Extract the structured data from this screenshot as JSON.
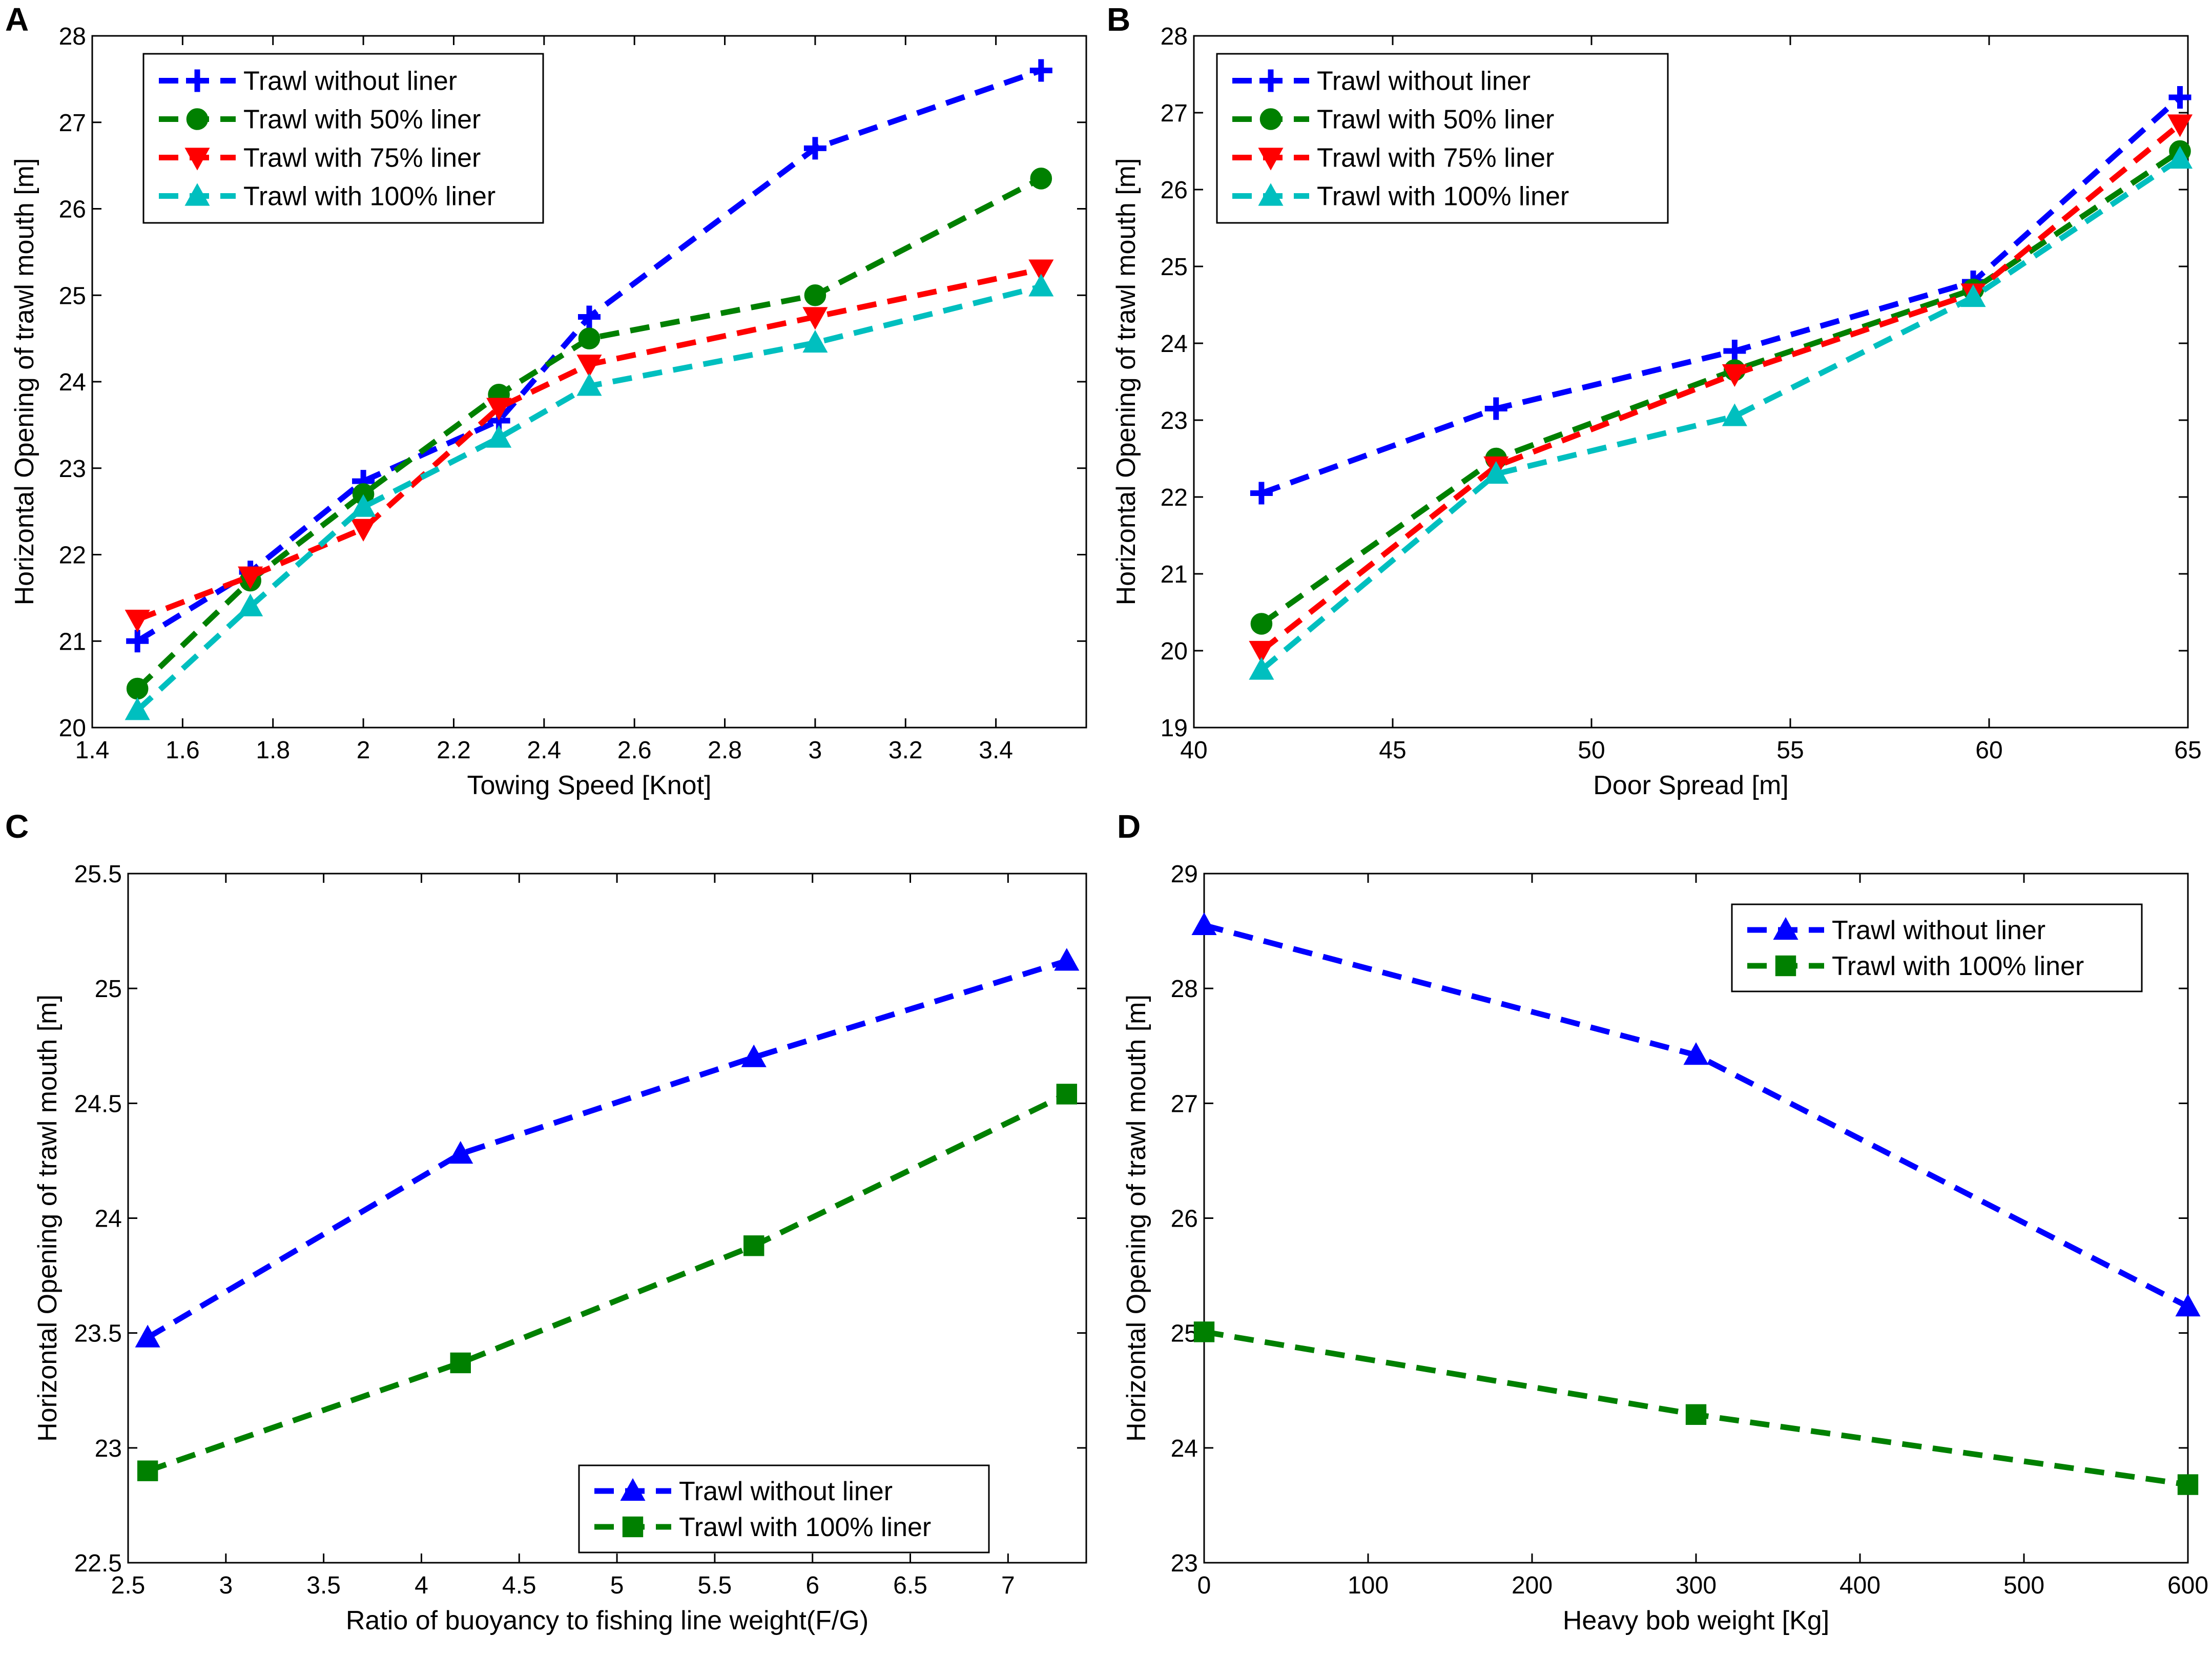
{
  "figure": {
    "panels": [
      "A",
      "B",
      "C",
      "D"
    ]
  },
  "series_styles": {
    "without": {
      "color": "#0000ff",
      "marker": "plus"
    },
    "with50": {
      "color": "#008000",
      "marker": "circle"
    },
    "with75": {
      "color": "#ff0000",
      "marker": "triangle-down"
    },
    "with100": {
      "color": "#00bfbf",
      "marker": "triangle-up"
    },
    "C_without": {
      "color": "#0000ff",
      "marker": "triangle-up"
    },
    "C_with100": {
      "color": "#008000",
      "marker": "square"
    },
    "D_without": {
      "color": "#0000ff",
      "marker": "triangle-up"
    },
    "D_with100": {
      "color": "#008000",
      "marker": "square"
    }
  },
  "chart_data": [
    {
      "panel": "A",
      "type": "line",
      "title": "",
      "xlabel": "Towing Speed [Knot]",
      "ylabel": "Horizontal Opening of trawl mouth [m]",
      "xlim": [
        1.4,
        3.6
      ],
      "ylim": [
        20,
        28
      ],
      "xticks": [
        1.4,
        1.6,
        1.8,
        2,
        2.2,
        2.4,
        2.6,
        2.8,
        3,
        3.2,
        3.4
      ],
      "yticks": [
        20,
        21,
        22,
        23,
        24,
        25,
        26,
        27,
        28
      ],
      "xtick_labels": [
        "1.4",
        "1.6",
        "1.8",
        "2",
        "2.2",
        "2.4",
        "2.6",
        "2.8",
        "3",
        "3.2",
        "3.4"
      ],
      "ytick_labels": [
        "20",
        "21",
        "22",
        "23",
        "24",
        "25",
        "26",
        "27",
        "28"
      ],
      "legend_position": "top-left",
      "x": [
        1.5,
        1.75,
        2,
        2.3,
        2.5,
        3,
        3.5
      ],
      "series": [
        {
          "name": "Trawl without liner",
          "style": "without",
          "values": [
            21.0,
            21.8,
            22.85,
            23.55,
            24.75,
            26.7,
            27.6
          ]
        },
        {
          "name": "Trawl with 50% liner",
          "style": "with50",
          "values": [
            20.45,
            21.7,
            22.7,
            23.85,
            24.5,
            25.0,
            26.35
          ]
        },
        {
          "name": "Trawl with 75% liner",
          "style": "with75",
          "values": [
            21.25,
            21.75,
            22.3,
            23.7,
            24.2,
            24.75,
            25.3
          ]
        },
        {
          "name": "Trawl with 100% liner",
          "style": "with100",
          "values": [
            20.2,
            21.4,
            22.55,
            23.35,
            23.95,
            24.45,
            25.1
          ]
        }
      ]
    },
    {
      "panel": "B",
      "type": "line",
      "title": "",
      "xlabel": "Door Spread [m]",
      "ylabel": "Horizontal Opening of trawl mouth [m]",
      "xlim": [
        40,
        65
      ],
      "ylim": [
        19,
        28
      ],
      "xticks": [
        40,
        45,
        50,
        55,
        60,
        65
      ],
      "yticks": [
        19,
        20,
        21,
        22,
        23,
        24,
        25,
        26,
        27,
        28
      ],
      "xtick_labels": [
        "40",
        "45",
        "50",
        "55",
        "60",
        "65"
      ],
      "ytick_labels": [
        "19",
        "20",
        "21",
        "22",
        "23",
        "24",
        "25",
        "26",
        "27",
        "28"
      ],
      "legend_position": "top-left",
      "x": [
        41.7,
        47.6,
        53.6,
        59.6,
        64.8
      ],
      "series": [
        {
          "name": "Trawl without liner",
          "style": "without",
          "values": [
            22.05,
            23.15,
            23.9,
            24.8,
            27.2
          ]
        },
        {
          "name": "Trawl with 50% liner",
          "style": "with50",
          "values": [
            20.35,
            22.5,
            23.65,
            24.7,
            26.5
          ]
        },
        {
          "name": "Trawl with 75% liner",
          "style": "with75",
          "values": [
            20.0,
            22.4,
            23.6,
            24.65,
            26.85
          ]
        },
        {
          "name": "Trawl with 100% liner",
          "style": "with100",
          "values": [
            19.75,
            22.3,
            23.05,
            24.6,
            26.4
          ]
        }
      ]
    },
    {
      "panel": "C",
      "type": "line",
      "title": "",
      "xlabel": "Ratio of buoyancy to fishing line weight(F/G)",
      "ylabel": "Horizontal Opening of trawl mouth [m]",
      "xlim": [
        2.5,
        7.4
      ],
      "ylim": [
        22.5,
        25.5
      ],
      "xticks": [
        2.5,
        3,
        3.5,
        4,
        4.5,
        5,
        5.5,
        6,
        6.5,
        7
      ],
      "yticks": [
        22.5,
        23,
        23.5,
        24,
        24.5,
        25,
        25.5
      ],
      "xtick_labels": [
        "2.5",
        "3",
        "3.5",
        "4",
        "4.5",
        "5",
        "5.5",
        "6",
        "6.5",
        "7"
      ],
      "ytick_labels": [
        "22.5",
        "23",
        "23.5",
        "24",
        "24.5",
        "25",
        "25.5"
      ],
      "legend_position": "bottom-right",
      "x": [
        2.6,
        4.2,
        5.7,
        7.3
      ],
      "series": [
        {
          "name": "Trawl without liner",
          "style": "C_without",
          "values": [
            23.48,
            24.28,
            24.7,
            25.12
          ]
        },
        {
          "name": "Trawl with 100% liner",
          "style": "C_with100",
          "values": [
            22.9,
            23.37,
            23.88,
            24.54
          ]
        }
      ]
    },
    {
      "panel": "D",
      "type": "line",
      "title": "",
      "xlabel": "Heavy bob weight [Kg]",
      "ylabel": "Horizontal Opening of trawl mouth [m]",
      "xlim": [
        0,
        600
      ],
      "ylim": [
        23,
        29
      ],
      "xticks": [
        0,
        100,
        200,
        300,
        400,
        500,
        600
      ],
      "yticks": [
        23,
        24,
        25,
        26,
        27,
        28,
        29
      ],
      "xtick_labels": [
        "0",
        "100",
        "200",
        "300",
        "400",
        "500",
        "600"
      ],
      "ytick_labels": [
        "23",
        "24",
        "25",
        "26",
        "27",
        "28",
        "29"
      ],
      "legend_position": "top-right",
      "x": [
        0,
        300,
        600
      ],
      "series": [
        {
          "name": "Trawl without liner",
          "style": "D_without",
          "values": [
            28.55,
            27.42,
            25.23
          ]
        },
        {
          "name": "Trawl with 100% liner",
          "style": "D_with100",
          "values": [
            25.01,
            24.29,
            23.68
          ]
        }
      ]
    }
  ]
}
